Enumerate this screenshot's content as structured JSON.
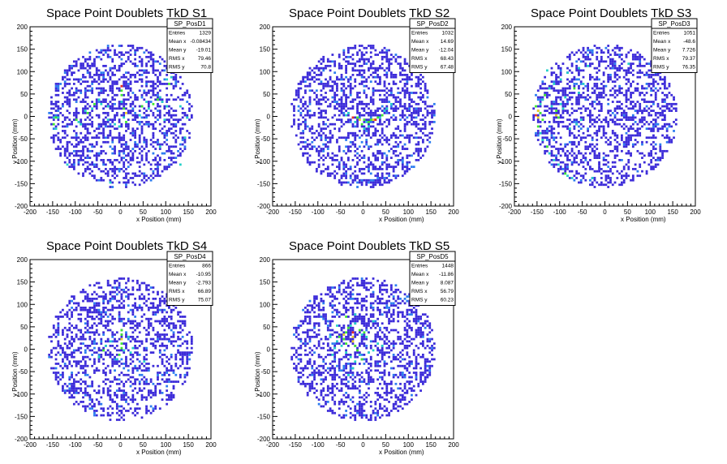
{
  "chart_data": [
    {
      "type": "heatmap",
      "title": "Space Point Doublets TkD S1",
      "xlabel": "x Position (mm)",
      "ylabel": "y Position (mm)",
      "xlim": [
        -200,
        200
      ],
      "ylim": [
        -200,
        200
      ],
      "xticks": [
        "-200",
        "-150",
        "-100",
        "-50",
        "0",
        "50",
        "100",
        "150",
        "200"
      ],
      "yticks": [
        "-200",
        "-150",
        "-100",
        "-50",
        "0",
        "50",
        "100",
        "150",
        "200"
      ],
      "stats": {
        "name": "SP_PosD1",
        "rows": [
          [
            "Entries",
            "1329"
          ],
          [
            "Mean x",
            "-0.08434"
          ],
          [
            "Mean y",
            "-19.01"
          ],
          [
            "RMS x",
            "79.46"
          ],
          [
            "RMS y",
            "70.8"
          ]
        ]
      },
      "cells": [
        [
          -150,
          -5,
          2
        ],
        [
          -145,
          -5,
          3
        ],
        [
          -140,
          -5,
          2
        ],
        [
          -150,
          -20,
          3
        ],
        [
          -145,
          -30,
          2
        ],
        [
          -100,
          -10,
          3
        ],
        [
          -95,
          -15,
          2
        ],
        [
          -90,
          -20,
          2
        ],
        [
          -80,
          10,
          2
        ],
        [
          -75,
          5,
          3
        ],
        [
          -65,
          15,
          2
        ],
        [
          -60,
          25,
          3
        ],
        [
          -50,
          35,
          2
        ],
        [
          -45,
          25,
          2
        ],
        [
          -30,
          20,
          2
        ],
        [
          0,
          65,
          5
        ],
        [
          0,
          55,
          3
        ],
        [
          0,
          45,
          3
        ],
        [
          0,
          30,
          2
        ],
        [
          5,
          15,
          3
        ],
        [
          10,
          5,
          4
        ],
        [
          5,
          -5,
          2
        ],
        [
          10,
          -15,
          3
        ],
        [
          -5,
          -25,
          2
        ],
        [
          -15,
          -20,
          2
        ],
        [
          -30,
          -10,
          2
        ],
        [
          40,
          0,
          2
        ],
        [
          45,
          20,
          3
        ],
        [
          55,
          30,
          2
        ],
        [
          60,
          15,
          2
        ],
        [
          70,
          25,
          3
        ],
        [
          80,
          35,
          3
        ],
        [
          85,
          40,
          2
        ],
        [
          90,
          30,
          2
        ],
        [
          100,
          20,
          2
        ],
        [
          95,
          -10,
          2
        ],
        [
          100,
          80,
          2
        ],
        [
          105,
          70,
          3
        ],
        [
          110,
          85,
          2
        ],
        [
          130,
          20,
          2
        ],
        [
          145,
          -5,
          2
        ],
        [
          140,
          -50,
          2
        ],
        [
          85,
          -70,
          2
        ],
        [
          -25,
          -150,
          2
        ],
        [
          -120,
          -110,
          2
        ],
        [
          130,
          -110,
          2
        ]
      ]
    },
    {
      "type": "heatmap",
      "title": "Space Point Doublets TkD S2",
      "xlabel": "x Position (mm)",
      "ylabel": "y Position (mm)",
      "xlim": [
        -200,
        200
      ],
      "ylim": [
        -200,
        200
      ],
      "xticks": [
        "-200",
        "-150",
        "-100",
        "-50",
        "0",
        "50",
        "100",
        "150",
        "200"
      ],
      "yticks": [
        "-200",
        "-150",
        "-100",
        "-50",
        "0",
        "50",
        "100",
        "150",
        "200"
      ],
      "stats": {
        "name": "SP_PosD2",
        "rows": [
          [
            "Entries",
            "1032"
          ],
          [
            "Mean x",
            "14.69"
          ],
          [
            "Mean y",
            "-12.04"
          ],
          [
            "RMS x",
            "68.43"
          ],
          [
            "RMS y",
            "67.48"
          ]
        ]
      },
      "cells": [
        [
          -25,
          -5,
          5
        ],
        [
          -15,
          -5,
          3
        ],
        [
          -10,
          -10,
          4
        ],
        [
          -5,
          -20,
          3
        ],
        [
          0,
          -10,
          3
        ],
        [
          5,
          -15,
          2
        ],
        [
          10,
          -15,
          3
        ],
        [
          15,
          -10,
          3
        ],
        [
          20,
          -10,
          4
        ],
        [
          25,
          -10,
          5
        ],
        [
          30,
          -5,
          3
        ],
        [
          35,
          -5,
          2
        ],
        [
          40,
          0,
          3
        ],
        [
          45,
          10,
          2
        ],
        [
          50,
          15,
          2
        ],
        [
          -35,
          5,
          2
        ],
        [
          -40,
          0,
          2
        ],
        [
          10,
          -25,
          2
        ],
        [
          -20,
          -15,
          2
        ],
        [
          60,
          25,
          2
        ],
        [
          0,
          -30,
          2
        ]
      ]
    },
    {
      "type": "heatmap",
      "title": "Space Point Doublets TkD S3",
      "xlabel": "x Position (mm)",
      "ylabel": "y Position (mm)",
      "xlim": [
        -200,
        200
      ],
      "ylim": [
        -200,
        200
      ],
      "xticks": [
        "-200",
        "-150",
        "-100",
        "-50",
        "0",
        "50",
        "100",
        "150",
        "200"
      ],
      "yticks": [
        "-200",
        "-150",
        "-100",
        "-50",
        "0",
        "50",
        "100",
        "150",
        "200"
      ],
      "stats": {
        "name": "SP_PosD3",
        "rows": [
          [
            "Entries",
            "1051"
          ],
          [
            "Mean x",
            "-48.6"
          ],
          [
            "Mean y",
            "7.726"
          ],
          [
            "RMS x",
            "79.37"
          ],
          [
            "RMS y",
            "76.35"
          ]
        ]
      },
      "cells": [
        [
          -155,
          20,
          3
        ],
        [
          -150,
          10,
          4
        ],
        [
          -155,
          0,
          5
        ],
        [
          -150,
          -5,
          4
        ],
        [
          -145,
          5,
          3
        ],
        [
          -140,
          -10,
          3
        ],
        [
          -145,
          25,
          2
        ],
        [
          -140,
          35,
          2
        ],
        [
          -135,
          45,
          3
        ],
        [
          -125,
          60,
          2
        ],
        [
          -115,
          70,
          2
        ],
        [
          -100,
          80,
          2
        ],
        [
          -85,
          95,
          2
        ],
        [
          -60,
          105,
          2
        ],
        [
          -150,
          -25,
          3
        ],
        [
          -145,
          -40,
          2
        ],
        [
          -140,
          -55,
          2
        ],
        [
          -130,
          -70,
          3
        ],
        [
          -125,
          -85,
          2
        ],
        [
          -115,
          -100,
          2
        ],
        [
          -105,
          -110,
          2
        ],
        [
          -110,
          10,
          3
        ],
        [
          -110,
          0,
          4
        ],
        [
          -105,
          -5,
          3
        ],
        [
          -120,
          20,
          2
        ],
        [
          -100,
          25,
          2
        ],
        [
          -95,
          15,
          2
        ],
        [
          -90,
          40,
          2
        ],
        [
          -70,
          60,
          3
        ],
        [
          -60,
          50,
          2
        ],
        [
          -50,
          70,
          2
        ],
        [
          -40,
          110,
          2
        ],
        [
          -55,
          -10,
          2
        ],
        [
          -65,
          -20,
          2
        ],
        [
          -80,
          -30,
          2
        ],
        [
          -90,
          -130,
          3
        ],
        [
          -85,
          -135,
          2
        ],
        [
          -75,
          -140,
          2
        ],
        [
          -30,
          -140,
          2
        ],
        [
          50,
          115,
          2
        ],
        [
          -130,
          100,
          2
        ]
      ]
    },
    {
      "type": "heatmap",
      "title": "Space Point Doublets TkD S4",
      "xlabel": "x Position (mm)",
      "ylabel": "y Position (mm)",
      "xlim": [
        -200,
        200
      ],
      "ylim": [
        -200,
        200
      ],
      "xticks": [
        "-200",
        "-150",
        "-100",
        "-50",
        "0",
        "50",
        "100",
        "150",
        "200"
      ],
      "yticks": [
        "-200",
        "-150",
        "-100",
        "-50",
        "0",
        "50",
        "100",
        "150",
        "200"
      ],
      "stats": {
        "name": "SP_PosD4",
        "rows": [
          [
            "Entries",
            "866"
          ],
          [
            "Mean x",
            "-10.95"
          ],
          [
            "Mean y",
            "-2.793"
          ],
          [
            "RMS x",
            "66.89"
          ],
          [
            "RMS y",
            "75.07"
          ]
        ]
      },
      "cells": [
        [
          0,
          40,
          3
        ],
        [
          0,
          30,
          3
        ],
        [
          0,
          20,
          4
        ],
        [
          0,
          10,
          3
        ],
        [
          0,
          0,
          3
        ],
        [
          5,
          -5,
          2
        ],
        [
          -5,
          -15,
          3
        ],
        [
          -10,
          -25,
          2
        ],
        [
          -25,
          15,
          2
        ],
        [
          -35,
          5,
          2
        ],
        [
          -40,
          -5,
          3
        ],
        [
          15,
          25,
          2
        ],
        [
          25,
          0,
          2
        ],
        [
          20,
          -10,
          2
        ],
        [
          -50,
          -20,
          2
        ],
        [
          50,
          -30,
          2
        ]
      ]
    },
    {
      "type": "heatmap",
      "title": "Space Point Doublets TkD S5",
      "xlabel": "x Position (mm)",
      "ylabel": "y Position (mm)",
      "xlim": [
        -200,
        200
      ],
      "ylim": [
        -200,
        200
      ],
      "xticks": [
        "-200",
        "-150",
        "-100",
        "-50",
        "0",
        "50",
        "100",
        "150",
        "200"
      ],
      "yticks": [
        "-200",
        "-150",
        "-100",
        "-50",
        "0",
        "50",
        "100",
        "150",
        "200"
      ],
      "stats": {
        "name": "SP_PosD5",
        "rows": [
          [
            "Entries",
            "1448"
          ],
          [
            "Mean x",
            "-11.86"
          ],
          [
            "Mean y",
            "8.087"
          ],
          [
            "RMS x",
            "56.79"
          ],
          [
            "RMS y",
            "60.23"
          ]
        ]
      },
      "cells": [
        [
          -25,
          35,
          5
        ],
        [
          -25,
          25,
          4
        ],
        [
          -25,
          15,
          4
        ],
        [
          -20,
          5,
          3
        ],
        [
          -45,
          30,
          4
        ],
        [
          -40,
          35,
          3
        ],
        [
          -45,
          20,
          3
        ],
        [
          -40,
          10,
          3
        ],
        [
          -55,
          25,
          3
        ],
        [
          -60,
          15,
          2
        ],
        [
          -50,
          5,
          2
        ],
        [
          -35,
          45,
          3
        ],
        [
          -30,
          50,
          2
        ],
        [
          -20,
          55,
          2
        ],
        [
          -10,
          40,
          3
        ],
        [
          -5,
          30,
          2
        ],
        [
          0,
          35,
          3
        ],
        [
          5,
          25,
          2
        ],
        [
          -15,
          -5,
          3
        ],
        [
          -10,
          -15,
          2
        ],
        [
          -5,
          -25,
          3
        ],
        [
          -20,
          -30,
          2
        ],
        [
          -30,
          -20,
          2
        ],
        [
          -40,
          -10,
          2
        ],
        [
          -65,
          0,
          2
        ],
        [
          -70,
          -15,
          2
        ],
        [
          10,
          -10,
          2
        ],
        [
          20,
          -5,
          2
        ],
        [
          30,
          10,
          2
        ],
        [
          40,
          5,
          2
        ],
        [
          -25,
          -45,
          2
        ],
        [
          -35,
          -60,
          2
        ],
        [
          -40,
          70,
          3
        ],
        [
          -20,
          75,
          2
        ],
        [
          20,
          60,
          2
        ],
        [
          -60,
          50,
          2
        ],
        [
          -75,
          25,
          2
        ]
      ]
    }
  ]
}
